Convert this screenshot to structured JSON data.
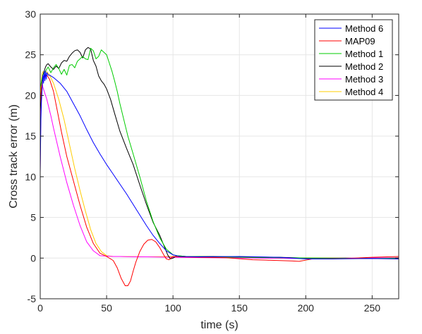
{
  "chart_data": {
    "type": "line",
    "xlabel": "time (s)",
    "ylabel": "Cross track error (m)",
    "xlim": [
      0,
      270
    ],
    "ylim": [
      -5,
      30
    ],
    "xticks": [
      0,
      50,
      100,
      150,
      200,
      250
    ],
    "yticks": [
      -5,
      0,
      5,
      10,
      15,
      20,
      25,
      30
    ],
    "grid": true,
    "legend_position": "top-right",
    "series": [
      {
        "name": "Method 6",
        "color": "#0000ff",
        "points": [
          [
            0,
            10.5
          ],
          [
            0.5,
            17
          ],
          [
            1,
            19.5
          ],
          [
            1.5,
            21
          ],
          [
            2,
            22.5
          ],
          [
            2.5,
            21.5
          ],
          [
            3,
            23
          ],
          [
            3.5,
            21.8
          ],
          [
            4,
            23
          ],
          [
            4.5,
            22
          ],
          [
            5,
            22.8
          ],
          [
            6,
            22.5
          ],
          [
            7,
            22.5
          ],
          [
            10,
            22.2
          ],
          [
            15,
            21.5
          ],
          [
            20,
            20.5
          ],
          [
            25,
            19
          ],
          [
            30,
            17.5
          ],
          [
            35,
            15.8
          ],
          [
            40,
            14.2
          ],
          [
            45,
            12.8
          ],
          [
            50,
            11.5
          ],
          [
            55,
            10.3
          ],
          [
            60,
            9.1
          ],
          [
            65,
            7.9
          ],
          [
            70,
            6.6
          ],
          [
            75,
            5.3
          ],
          [
            80,
            4
          ],
          [
            85,
            2.8
          ],
          [
            90,
            1.8
          ],
          [
            95,
            0.9
          ],
          [
            100,
            0.4
          ],
          [
            105,
            0.2
          ],
          [
            120,
            0.15
          ],
          [
            150,
            0.2
          ],
          [
            180,
            0.1
          ],
          [
            200,
            -0.1
          ],
          [
            220,
            -0.1
          ],
          [
            250,
            -0.05
          ],
          [
            270,
            -0.1
          ]
        ]
      },
      {
        "name": "MAP09",
        "color": "#ff0000",
        "points": [
          [
            0,
            19
          ],
          [
            1,
            21
          ],
          [
            2,
            22
          ],
          [
            3,
            22.5
          ],
          [
            5,
            22.5
          ],
          [
            7,
            22
          ],
          [
            10,
            20.5
          ],
          [
            13,
            18
          ],
          [
            16,
            15.5
          ],
          [
            20,
            12.5
          ],
          [
            25,
            9.5
          ],
          [
            30,
            6.5
          ],
          [
            35,
            3.8
          ],
          [
            40,
            1.8
          ],
          [
            45,
            0.6
          ],
          [
            50,
            0.2
          ],
          [
            55,
            -0.3
          ],
          [
            58,
            -1.2
          ],
          [
            61,
            -2.5
          ],
          [
            64,
            -3.4
          ],
          [
            66,
            -3.4
          ],
          [
            68,
            -2.8
          ],
          [
            70,
            -1.6
          ],
          [
            72,
            -0.5
          ],
          [
            75,
            0.8
          ],
          [
            78,
            1.7
          ],
          [
            81,
            2.2
          ],
          [
            84,
            2.3
          ],
          [
            87,
            2
          ],
          [
            90,
            1.3
          ],
          [
            93,
            0.4
          ],
          [
            95,
            -0.1
          ],
          [
            97,
            -0.2
          ],
          [
            100,
            0.2
          ],
          [
            105,
            0.15
          ],
          [
            120,
            0.1
          ],
          [
            140,
            0.05
          ],
          [
            160,
            -0.2
          ],
          [
            170,
            -0.25
          ],
          [
            190,
            -0.35
          ],
          [
            195,
            -0.4
          ],
          [
            205,
            -0.1
          ],
          [
            230,
            -0.05
          ],
          [
            250,
            0.1
          ],
          [
            270,
            0.2
          ]
        ]
      },
      {
        "name": "Method 1",
        "color": "#00cc00",
        "points": [
          [
            0,
            21
          ],
          [
            2,
            22.5
          ],
          [
            4,
            23
          ],
          [
            6,
            23.5
          ],
          [
            8,
            22.8
          ],
          [
            10,
            23.4
          ],
          [
            12,
            23.8
          ],
          [
            14,
            23.3
          ],
          [
            16,
            22.6
          ],
          [
            18,
            23.2
          ],
          [
            20,
            22.5
          ],
          [
            22,
            23.7
          ],
          [
            24,
            23.8
          ],
          [
            26,
            23.4
          ],
          [
            28,
            24.2
          ],
          [
            30,
            24.5
          ],
          [
            32,
            24.8
          ],
          [
            34,
            24.5
          ],
          [
            36,
            24.4
          ],
          [
            38,
            25.8
          ],
          [
            40,
            25.5
          ],
          [
            42,
            24.5
          ],
          [
            44,
            24.8
          ],
          [
            46,
            25.6
          ],
          [
            48,
            25.3
          ],
          [
            50,
            25
          ],
          [
            52,
            24
          ],
          [
            54,
            23
          ],
          [
            56,
            21.8
          ],
          [
            58,
            20.5
          ],
          [
            60,
            19
          ],
          [
            63,
            17
          ],
          [
            66,
            15
          ],
          [
            70,
            12.8
          ],
          [
            75,
            10
          ],
          [
            80,
            7
          ],
          [
            85,
            4.5
          ],
          [
            90,
            2.5
          ],
          [
            95,
            1.1
          ],
          [
            98,
            0.7
          ],
          [
            100,
            0.4
          ],
          [
            103,
            0.3
          ],
          [
            110,
            0.2
          ],
          [
            130,
            0.15
          ],
          [
            150,
            0.1
          ],
          [
            180,
            0.05
          ],
          [
            210,
            0
          ],
          [
            250,
            -0.05
          ],
          [
            270,
            0
          ]
        ]
      },
      {
        "name": "Method 2",
        "color": "#000000",
        "points": [
          [
            0,
            18
          ],
          [
            1,
            21
          ],
          [
            2,
            22.5
          ],
          [
            3,
            23
          ],
          [
            4,
            23.5
          ],
          [
            5,
            23.8
          ],
          [
            6,
            23.9
          ],
          [
            8,
            23.5
          ],
          [
            10,
            23.2
          ],
          [
            12,
            23.6
          ],
          [
            14,
            23.3
          ],
          [
            16,
            24
          ],
          [
            18,
            24.3
          ],
          [
            20,
            24.2
          ],
          [
            22,
            24.8
          ],
          [
            24,
            25.2
          ],
          [
            26,
            25.5
          ],
          [
            28,
            25.6
          ],
          [
            30,
            25.3
          ],
          [
            32,
            24.6
          ],
          [
            34,
            25.6
          ],
          [
            36,
            25.9
          ],
          [
            38,
            25.7
          ],
          [
            40,
            24.3
          ],
          [
            42,
            23.6
          ],
          [
            44,
            22.4
          ],
          [
            46,
            21.8
          ],
          [
            48,
            21.4
          ],
          [
            50,
            20.8
          ],
          [
            53,
            19.5
          ],
          [
            56,
            17.8
          ],
          [
            60,
            15.6
          ],
          [
            65,
            13.5
          ],
          [
            70,
            11.5
          ],
          [
            75,
            9
          ],
          [
            80,
            6.6
          ],
          [
            85,
            4.4
          ],
          [
            90,
            2.8
          ],
          [
            93,
            1.6
          ],
          [
            96,
            0.4
          ],
          [
            98,
            -0.1
          ],
          [
            100,
            0
          ],
          [
            103,
            0.3
          ],
          [
            110,
            0.2
          ],
          [
            130,
            0.2
          ],
          [
            150,
            0.15
          ],
          [
            180,
            0.1
          ],
          [
            200,
            0
          ],
          [
            230,
            0
          ],
          [
            250,
            -0.05
          ],
          [
            270,
            -0.05
          ]
        ]
      },
      {
        "name": "Method 3",
        "color": "#ff00ff",
        "points": [
          [
            0,
            10.5
          ],
          [
            0.5,
            18
          ],
          [
            1,
            20.5
          ],
          [
            1.5,
            21.5
          ],
          [
            2,
            21
          ],
          [
            3,
            20.5
          ],
          [
            5,
            19.5
          ],
          [
            8,
            17.5
          ],
          [
            10,
            16
          ],
          [
            15,
            12.5
          ],
          [
            20,
            9.3
          ],
          [
            25,
            6.5
          ],
          [
            30,
            4
          ],
          [
            35,
            2
          ],
          [
            40,
            0.9
          ],
          [
            45,
            0.3
          ],
          [
            50,
            0.25
          ],
          [
            55,
            0.2
          ],
          [
            60,
            0.2
          ],
          [
            70,
            0.15
          ],
          [
            80,
            0.15
          ],
          [
            100,
            0.1
          ],
          [
            130,
            0.05
          ],
          [
            160,
            0
          ],
          [
            200,
            -0.05
          ],
          [
            240,
            0
          ],
          [
            270,
            0.05
          ]
        ]
      },
      {
        "name": "Method 4",
        "color": "#ffcc00",
        "points": [
          [
            0,
            18
          ],
          [
            0.5,
            21
          ],
          [
            1,
            22
          ],
          [
            1.5,
            22.7
          ],
          [
            2,
            22.9
          ],
          [
            3,
            23
          ],
          [
            5,
            22.9
          ],
          [
            7,
            22.5
          ],
          [
            10,
            21.5
          ],
          [
            14,
            19.5
          ],
          [
            18,
            17
          ],
          [
            22,
            14
          ],
          [
            26,
            11
          ],
          [
            30,
            8.3
          ],
          [
            34,
            5.8
          ],
          [
            38,
            3.5
          ],
          [
            42,
            1.8
          ],
          [
            46,
            0.8
          ],
          [
            50,
            0.3
          ],
          [
            55,
            0.2
          ],
          [
            60,
            0.2
          ],
          [
            80,
            0.15
          ],
          [
            100,
            0.2
          ],
          [
            130,
            0.1
          ],
          [
            160,
            0.05
          ],
          [
            200,
            0
          ],
          [
            230,
            -0.05
          ],
          [
            270,
            0.05
          ]
        ]
      }
    ]
  }
}
